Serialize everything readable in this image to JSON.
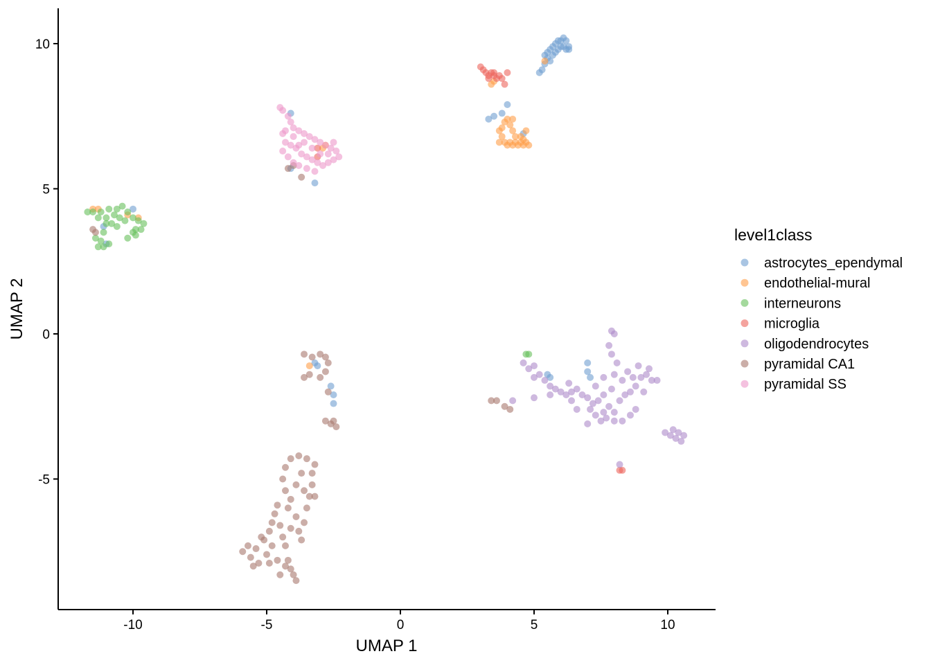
{
  "chart_data": {
    "type": "scatter",
    "title": "",
    "xlabel": "UMAP 1",
    "ylabel": "UMAP 2",
    "xlim": [
      -12.8,
      11.8
    ],
    "ylim": [
      -9.5,
      11.2
    ],
    "xticks": [
      -10,
      -5,
      0,
      5,
      10
    ],
    "yticks": [
      -5,
      0,
      5,
      10
    ],
    "grid": false,
    "legend": {
      "title": "level1class",
      "placement": "right"
    },
    "series": [
      {
        "name": "astrocytes_ependymal",
        "color": "#6F9ED0",
        "points": [
          [
            5.2,
            9.0
          ],
          [
            5.3,
            9.1
          ],
          [
            5.4,
            9.3
          ],
          [
            5.5,
            9.5
          ],
          [
            5.5,
            9.7
          ],
          [
            5.6,
            9.8
          ],
          [
            5.7,
            9.6
          ],
          [
            5.7,
            9.9
          ],
          [
            5.8,
            10.0
          ],
          [
            5.9,
            10.1
          ],
          [
            5.9,
            9.8
          ],
          [
            6.0,
            10.1
          ],
          [
            6.1,
            10.2
          ],
          [
            6.2,
            10.1
          ],
          [
            6.3,
            9.9
          ],
          [
            6.3,
            9.8
          ],
          [
            6.1,
            9.9
          ],
          [
            5.6,
            9.4
          ],
          [
            5.8,
            9.7
          ],
          [
            6.0,
            9.9
          ],
          [
            5.4,
            9.6
          ],
          [
            6.2,
            9.8
          ],
          [
            3.8,
            7.6
          ],
          [
            4.0,
            7.9
          ],
          [
            3.3,
            7.4
          ],
          [
            3.5,
            7.5
          ],
          [
            4.6,
            6.9
          ],
          [
            -2.5,
            -2.1
          ],
          [
            -2.5,
            -2.4
          ],
          [
            -2.6,
            -1.8
          ],
          [
            -3.2,
            -1.0
          ],
          [
            -3.1,
            -1.1
          ],
          [
            7.0,
            -1.0
          ],
          [
            7.0,
            -1.3
          ],
          [
            7.1,
            -1.5
          ],
          [
            5.6,
            -1.5
          ],
          [
            5.5,
            -1.4
          ],
          [
            -11.1,
            3.7
          ],
          [
            -11.0,
            3.1
          ],
          [
            -10.0,
            4.3
          ],
          [
            -4.1,
            7.6
          ],
          [
            -4.1,
            5.7
          ],
          [
            -3.2,
            5.2
          ]
        ]
      },
      {
        "name": "endothelial-mural",
        "color": "#FF9E4A",
        "points": [
          [
            3.7,
            6.6
          ],
          [
            3.8,
            6.8
          ],
          [
            3.9,
            6.6
          ],
          [
            4.0,
            6.5
          ],
          [
            4.1,
            6.6
          ],
          [
            4.2,
            6.5
          ],
          [
            4.3,
            6.6
          ],
          [
            4.4,
            6.5
          ],
          [
            4.5,
            6.6
          ],
          [
            4.6,
            6.7
          ],
          [
            4.7,
            6.6
          ],
          [
            4.8,
            6.5
          ],
          [
            4.7,
            7.0
          ],
          [
            4.5,
            6.8
          ],
          [
            4.2,
            7.0
          ],
          [
            3.8,
            7.1
          ],
          [
            3.9,
            7.3
          ],
          [
            4.0,
            7.4
          ],
          [
            4.1,
            7.2
          ],
          [
            4.2,
            7.4
          ],
          [
            3.7,
            7.0
          ],
          [
            4.3,
            6.8
          ],
          [
            4.6,
            6.5
          ],
          [
            3.4,
            8.6
          ],
          [
            3.5,
            8.7
          ],
          [
            5.4,
            9.4
          ],
          [
            -11.5,
            4.3
          ],
          [
            -11.3,
            4.3
          ],
          [
            -10.2,
            4.1
          ],
          [
            -9.8,
            4.0
          ],
          [
            -2.8,
            6.5
          ],
          [
            -2.9,
            6.4
          ],
          [
            -3.4,
            -1.1
          ]
        ]
      },
      {
        "name": "interneurons",
        "color": "#67BF5C",
        "points": [
          [
            -11.7,
            4.2
          ],
          [
            -11.5,
            4.2
          ],
          [
            -11.2,
            4.2
          ],
          [
            -10.9,
            4.3
          ],
          [
            -10.6,
            4.3
          ],
          [
            -10.4,
            4.4
          ],
          [
            -10.2,
            4.2
          ],
          [
            -10.0,
            4.0
          ],
          [
            -9.8,
            3.9
          ],
          [
            -9.6,
            3.8
          ],
          [
            -9.7,
            3.6
          ],
          [
            -9.9,
            3.4
          ],
          [
            -10.2,
            3.3
          ],
          [
            -10.0,
            3.5
          ],
          [
            -10.6,
            3.7
          ],
          [
            -10.8,
            3.8
          ],
          [
            -11.0,
            4.0
          ],
          [
            -11.1,
            3.5
          ],
          [
            -11.2,
            3.2
          ],
          [
            -11.3,
            3.0
          ],
          [
            -11.1,
            3.0
          ],
          [
            -10.9,
            3.1
          ],
          [
            -11.4,
            3.3
          ],
          [
            -11.0,
            3.8
          ],
          [
            -10.5,
            4.0
          ],
          [
            -10.3,
            3.9
          ],
          [
            -10.7,
            4.1
          ],
          [
            -11.3,
            4.0
          ],
          [
            -9.9,
            3.6
          ],
          [
            4.7,
            -0.7
          ],
          [
            4.8,
            -0.7
          ]
        ]
      },
      {
        "name": "microglia",
        "color": "#ED665D",
        "points": [
          [
            3.0,
            9.2
          ],
          [
            3.1,
            9.1
          ],
          [
            3.2,
            9.0
          ],
          [
            3.3,
            8.9
          ],
          [
            3.4,
            9.0
          ],
          [
            3.5,
            8.9
          ],
          [
            3.6,
            8.8
          ],
          [
            3.5,
            9.0
          ],
          [
            3.8,
            8.8
          ],
          [
            3.9,
            8.6
          ],
          [
            4.0,
            9.0
          ],
          [
            3.3,
            8.8
          ],
          [
            3.7,
            8.9
          ],
          [
            -3.1,
            6.4
          ],
          [
            -3.1,
            6.1
          ],
          [
            8.2,
            -4.7
          ],
          [
            8.3,
            -4.7
          ]
        ]
      },
      {
        "name": "oligodendrocytes",
        "color": "#AD8BC9",
        "points": [
          [
            4.6,
            -1.0
          ],
          [
            4.8,
            -1.2
          ],
          [
            5.0,
            -1.5
          ],
          [
            5.2,
            -1.4
          ],
          [
            5.4,
            -1.6
          ],
          [
            5.6,
            -1.8
          ],
          [
            5.8,
            -1.9
          ],
          [
            6.0,
            -2.0
          ],
          [
            6.2,
            -2.1
          ],
          [
            6.4,
            -2.0
          ],
          [
            6.6,
            -1.9
          ],
          [
            6.8,
            -2.1
          ],
          [
            7.0,
            -2.2
          ],
          [
            7.2,
            -2.4
          ],
          [
            7.4,
            -2.3
          ],
          [
            7.6,
            -2.1
          ],
          [
            7.8,
            -2.5
          ],
          [
            8.0,
            -2.7
          ],
          [
            8.2,
            -2.3
          ],
          [
            8.4,
            -2.1
          ],
          [
            8.6,
            -2.0
          ],
          [
            8.8,
            -1.8
          ],
          [
            9.0,
            -1.5
          ],
          [
            9.2,
            -1.4
          ],
          [
            9.4,
            -1.6
          ],
          [
            9.6,
            -1.6
          ],
          [
            9.3,
            -1.2
          ],
          [
            8.9,
            -1.1
          ],
          [
            8.5,
            -1.3
          ],
          [
            8.1,
            -1.0
          ],
          [
            7.9,
            -0.7
          ],
          [
            7.8,
            -0.4
          ],
          [
            7.9,
            0.1
          ],
          [
            8.0,
            0.0
          ],
          [
            7.6,
            -1.5
          ],
          [
            7.3,
            -1.8
          ],
          [
            7.1,
            -2.6
          ],
          [
            7.3,
            -2.8
          ],
          [
            7.5,
            -3.0
          ],
          [
            7.7,
            -2.9
          ],
          [
            8.0,
            -3.0
          ],
          [
            8.3,
            -3.0
          ],
          [
            8.6,
            -2.8
          ],
          [
            8.8,
            -2.6
          ],
          [
            7.0,
            -3.1
          ],
          [
            6.6,
            -2.6
          ],
          [
            6.4,
            -2.3
          ],
          [
            5.6,
            -2.1
          ],
          [
            5.0,
            -1.1
          ],
          [
            8.7,
            -1.5
          ],
          [
            8.3,
            -1.6
          ],
          [
            7.9,
            -1.9
          ],
          [
            7.6,
            -2.7
          ],
          [
            9.1,
            -2.0
          ],
          [
            6.3,
            -1.7
          ],
          [
            8.0,
            -1.4
          ],
          [
            9.9,
            -3.4
          ],
          [
            10.1,
            -3.5
          ],
          [
            10.3,
            -3.6
          ],
          [
            10.5,
            -3.7
          ],
          [
            10.6,
            -3.5
          ],
          [
            10.4,
            -3.4
          ],
          [
            10.2,
            -3.3
          ],
          [
            8.2,
            -4.5
          ],
          [
            4.2,
            -2.3
          ],
          [
            5.0,
            -2.2
          ]
        ]
      },
      {
        "name": "pyramidal CA1",
        "color": "#A8786E",
        "points": [
          [
            -5.9,
            -7.5
          ],
          [
            -5.7,
            -7.3
          ],
          [
            -5.6,
            -7.7
          ],
          [
            -5.4,
            -7.4
          ],
          [
            -5.3,
            -7.9
          ],
          [
            -5.1,
            -7.1
          ],
          [
            -5.0,
            -7.6
          ],
          [
            -4.9,
            -6.8
          ],
          [
            -4.8,
            -6.5
          ],
          [
            -4.7,
            -6.2
          ],
          [
            -4.6,
            -5.9
          ],
          [
            -4.5,
            -6.6
          ],
          [
            -4.4,
            -7.0
          ],
          [
            -4.3,
            -7.3
          ],
          [
            -4.2,
            -7.8
          ],
          [
            -4.1,
            -8.1
          ],
          [
            -4.0,
            -8.3
          ],
          [
            -4.1,
            -6.7
          ],
          [
            -3.9,
            -6.3
          ],
          [
            -3.8,
            -6.8
          ],
          [
            -3.7,
            -7.1
          ],
          [
            -3.6,
            -6.5
          ],
          [
            -3.5,
            -6.0
          ],
          [
            -3.4,
            -5.6
          ],
          [
            -3.3,
            -5.2
          ],
          [
            -3.3,
            -4.8
          ],
          [
            -3.2,
            -4.5
          ],
          [
            -3.5,
            -4.3
          ],
          [
            -3.8,
            -4.2
          ],
          [
            -4.1,
            -4.3
          ],
          [
            -4.3,
            -4.6
          ],
          [
            -4.4,
            -5.0
          ],
          [
            -4.3,
            -5.4
          ],
          [
            -4.1,
            -5.7
          ],
          [
            -3.9,
            -5.2
          ],
          [
            -3.7,
            -4.8
          ],
          [
            -3.6,
            -5.4
          ],
          [
            -4.6,
            -7.8
          ],
          [
            -4.8,
            -7.3
          ],
          [
            -5.2,
            -7.0
          ],
          [
            -4.5,
            -8.3
          ],
          [
            -4.3,
            -8.0
          ],
          [
            -3.9,
            -8.5
          ],
          [
            -5.5,
            -8.0
          ],
          [
            -4.9,
            -7.9
          ],
          [
            -4.2,
            -6.0
          ],
          [
            -3.2,
            -5.6
          ],
          [
            -3.6,
            -0.7
          ],
          [
            -3.3,
            -0.8
          ],
          [
            -3.0,
            -0.7
          ],
          [
            -2.8,
            -0.8
          ],
          [
            -2.7,
            -1.0
          ],
          [
            -2.8,
            -1.3
          ],
          [
            -3.0,
            -1.5
          ],
          [
            -3.4,
            -1.4
          ],
          [
            -3.6,
            -1.5
          ],
          [
            -2.7,
            -2.0
          ],
          [
            -2.8,
            -3.0
          ],
          [
            -2.6,
            -3.1
          ],
          [
            -2.4,
            -3.2
          ],
          [
            -2.5,
            -3.0
          ],
          [
            3.4,
            -2.3
          ],
          [
            3.6,
            -2.3
          ],
          [
            3.9,
            -2.5
          ],
          [
            4.1,
            -2.6
          ],
          [
            -4.2,
            5.7
          ],
          [
            -4.0,
            5.8
          ],
          [
            -3.7,
            5.4
          ],
          [
            -11.5,
            3.6
          ],
          [
            -11.4,
            3.5
          ]
        ]
      },
      {
        "name": "pyramidal SS",
        "color": "#ED97CA",
        "points": [
          [
            -4.5,
            7.8
          ],
          [
            -4.4,
            7.7
          ],
          [
            -4.2,
            7.5
          ],
          [
            -4.1,
            7.3
          ],
          [
            -4.0,
            7.1
          ],
          [
            -3.8,
            7.0
          ],
          [
            -3.6,
            6.9
          ],
          [
            -3.4,
            6.8
          ],
          [
            -3.2,
            6.7
          ],
          [
            -3.0,
            6.6
          ],
          [
            -2.8,
            6.5
          ],
          [
            -2.6,
            6.4
          ],
          [
            -2.4,
            6.3
          ],
          [
            -2.3,
            6.1
          ],
          [
            -2.5,
            6.0
          ],
          [
            -2.7,
            5.9
          ],
          [
            -2.9,
            5.8
          ],
          [
            -3.1,
            5.9
          ],
          [
            -3.3,
            6.0
          ],
          [
            -3.5,
            6.1
          ],
          [
            -3.7,
            6.2
          ],
          [
            -3.9,
            6.4
          ],
          [
            -4.1,
            6.5
          ],
          [
            -4.3,
            6.6
          ],
          [
            -4.4,
            6.3
          ],
          [
            -4.2,
            6.1
          ],
          [
            -4.0,
            5.9
          ],
          [
            -3.8,
            5.8
          ],
          [
            -3.6,
            6.6
          ],
          [
            -3.3,
            6.4
          ],
          [
            -3.0,
            6.2
          ],
          [
            -2.7,
            6.2
          ],
          [
            -4.3,
            7.0
          ],
          [
            -4.0,
            6.8
          ],
          [
            -3.8,
            6.5
          ],
          [
            -2.5,
            6.6
          ],
          [
            -3.2,
            5.6
          ],
          [
            -3.5,
            5.7
          ],
          [
            -4.4,
            6.9
          ]
        ]
      }
    ]
  }
}
